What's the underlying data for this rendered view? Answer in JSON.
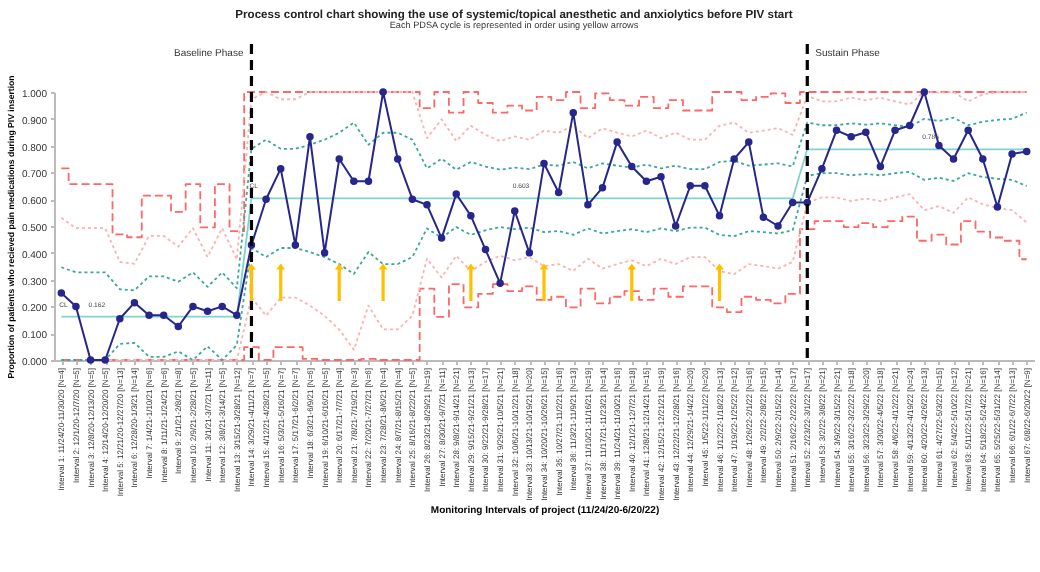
{
  "chart_data": {
    "type": "line",
    "title": "Process control chart showing the use of systemic/topical anesthetic and anxiolytics before PIV start",
    "subtitle": "Each PDSA cycle is represented in order using yellow arrows",
    "xlabel": "Monitoring Intervals of project (11/24/20-6/20/22)",
    "ylabel": "Proportion of patients who recieved pain medications during PIV insertion",
    "categories": [
      "Interval 1: 11/24/20-11/30/20 [N=4]",
      "Interval 2: 12/1/20-12/7/20 [N=5]",
      "Interval 3: 12/8/20-12/13/20 [N=5]",
      "Interval 4: 12/14/20-12/20/20 [N=5]",
      "Interval 5: 12/21/20-12/27/20 [N=13]",
      "Interval 6: 12/28/20-1/3/21 [N=14]",
      "Interval 7: 1/4/21-1/10/21 [N=6]",
      "Interval 8: 1/11/21-1/24/21 [N=6]",
      "Interval 9: 2/1/21-2/8/21 [N=8]",
      "Interval 10: 2/9/21-2/28/21 [N=5]",
      "Interval 11: 3/1/21-3/7/21 [N=11]",
      "Interval 12: 3/8/21-3/14/21 [N=5]",
      "Interval 13: 3/15/21-3/28/21 [N=12]",
      "Interval 14: 3/29/21-4/11/21 [N=7]",
      "Interval 15: 4/12/21-4/28/21 [N=5]",
      "Interval 16: 5/3/21-5/16/21 [N=7]",
      "Interval 17: 5/17/21-6/2/21 [N=7]",
      "Interval 18: 6/3/21-6/9/21 [N=6]",
      "Interval 19: 6/10/21-6/16/21 [N=5]",
      "Interval 20: 6/17/21-7/7/21 [N=4]",
      "Interval 21: 7/8/21-7/19/21 [N=3]",
      "Interval 22: 7/20/21-7/27/21 [N=6]",
      "Interval 23: 7/28/21-8/6/21 [N=4]",
      "Interval 24: 8/7/21-8/15/21 [N=4]",
      "Interval 25: 8/16/21-8/22/21 [N=5]",
      "Interval 26: 8/23/21-8/29/21 [N=19]",
      "Interval 27: 8/30/21-9/7/21 [N=11]",
      "Interval 28: 9/8/21-9/14/21 [N=21]",
      "Interval 29: 9/15/21-9/21/21 [N=13]",
      "Interval 30: 9/22/21-9/28/21 [N=17]",
      "Interval 31: 9/29/21-10/5/21 [N=21]",
      "Interval 32: 10/6/21-10/12/21 [N=18]",
      "Interval 33: 10/13/21-10/19/21 [N=20]",
      "Interval 34: 10/20/21-10/26/21 [N=15]",
      "Interval 35: 10/27/21-11/2/21 [N=16]",
      "Interval 36: 11/3/21-11/9/21 [N=13]",
      "Interval 37: 11/10/21-11/16/21 [N=19]",
      "Interval 38: 11/17/21-11/23/21 [N=14]",
      "Interval 39: 11/24/21-11/30/21 [N=16]",
      "Interval 40: 12/1/21-12/7/21 [N=18]",
      "Interval 41: 12/8/21-12/14/21 [N=15]",
      "Interval 42: 12/15/21-12/21/21 [N=19]",
      "Interval 43: 12/22/21-12/28/21 [N=16]",
      "Interval 44: 12/29/21-1/4/22 [N=20]",
      "Interval 45: 1/5/22-1/11/22 [N=20]",
      "Interval 46: 1/12/22-1/18/22 [N=13]",
      "Interval 47: 1/19/22-1/25/22 [N=12]",
      "Interval 48: 1/26/22-2/1/22 [N=16]",
      "Interval 49: 2/2/22-2/8/22 [N=15]",
      "Interval 50: 2/9/22-2/15/22 [N=14]",
      "Interval 51: 2/16/22-2/22/22 [N=17]",
      "Interval 52: 2/23/22-3/1/22 [N=17]",
      "Interval 53: 3/2/22-3/8/22 [N=21]",
      "Interval 54: 3/9/22-3/15/22 [N=21]",
      "Interval 55: 3/16/22-3/22/22 [N=18]",
      "Interval 56: 3/23/22-3/29/22 [N=20]",
      "Interval 57: 3/30/22-4/5/22 [N=18]",
      "Interval 58: 4/6/22-4/12/22 [N=21]",
      "Interval 59: 4/13/22-4/19/22 [N=24]",
      "Interval 60: 4/20/22-4/26/22 [N=13]",
      "Interval 61: 4/27/22-5/3/22 [N=15]",
      "Interval 62: 5/4/22-5/10/22 [N=12]",
      "Interval 63: 5/11/22-5/17/22 [N=21]",
      "Interval 64: 5/18/22-5/24/22 [N=16]",
      "Interval 65: 5/25/22-5/31/22 [N=14]",
      "Interval 66: 6/1/22-6/7/22 [N=13]",
      "Interval 67: 6/8/22-6/20/22 [N=9]"
    ],
    "series": [
      {
        "type": "step",
        "color": "#ff6666",
        "line_style": "dashed",
        "marker": "none",
        "values": [
          0.715,
          0.656,
          0.656,
          0.656,
          0.469,
          0.458,
          0.613,
          0.613,
          0.553,
          0.656,
          0.495,
          0.656,
          0.481,
          1,
          1,
          1,
          1,
          1,
          1,
          1,
          1,
          1,
          1,
          1,
          1,
          0.94,
          1,
          0.923,
          1,
          0.959,
          0.923,
          0.949,
          0.931,
          0.982,
          0.97,
          1,
          0.94,
          0.995,
          0.97,
          0.949,
          0.982,
          0.94,
          0.97,
          0.931,
          0.931,
          1,
          1,
          0.97,
          0.982,
          0.995,
          0.959,
          1,
          1,
          1,
          1,
          1,
          1,
          1,
          1,
          1,
          1,
          1,
          1,
          1,
          1,
          1,
          1
        ]
      },
      {
        "type": "step",
        "color": "#ff6666",
        "line_style": "dashed",
        "marker": "none",
        "values": [
          0,
          0,
          0,
          0,
          0,
          0,
          0,
          0,
          0,
          0,
          0,
          0,
          0,
          0.048,
          0,
          0.048,
          0.048,
          0.004,
          0,
          0,
          0,
          0.004,
          0,
          0,
          0,
          0.266,
          0.161,
          0.283,
          0.196,
          0.247,
          0.283,
          0.257,
          0.275,
          0.224,
          0.236,
          0.196,
          0.266,
          0.211,
          0.236,
          0.257,
          0.224,
          0.266,
          0.236,
          0.275,
          0.275,
          0.196,
          0.179,
          0.236,
          0.224,
          0.211,
          0.247,
          0.488,
          0.518,
          0.518,
          0.496,
          0.511,
          0.496,
          0.518,
          0.535,
          0.445,
          0.468,
          0.431,
          0.518,
          0.479,
          0.457,
          0.445,
          0.376
        ]
      },
      {
        "type": "line",
        "color": "#ffb0b0",
        "line_style": "dotted",
        "marker": "none",
        "values": [
          0.531,
          0.492,
          0.492,
          0.492,
          0.366,
          0.359,
          0.463,
          0.463,
          0.423,
          0.492,
          0.384,
          0.492,
          0.375,
          0.973,
          1,
          0.973,
          0.973,
          1,
          1,
          1,
          1,
          1,
          1,
          1,
          1,
          0.828,
          0.898,
          0.817,
          0.874,
          0.84,
          0.817,
          0.834,
          0.822,
          0.856,
          0.848,
          0.874,
          0.828,
          0.865,
          0.848,
          0.834,
          0.856,
          0.828,
          0.848,
          0.822,
          0.822,
          0.874,
          0.886,
          0.848,
          0.856,
          0.865,
          0.84,
          0.985,
          0.965,
          0.965,
          0.979,
          0.969,
          0.979,
          0.965,
          0.953,
          1,
          0.998,
          1,
          0.965,
          0.991,
          1,
          1,
          1
        ]
      },
      {
        "type": "line",
        "color": "#ffb0b0",
        "line_style": "dotted",
        "marker": "none",
        "values": [
          0,
          0,
          0,
          0,
          0,
          0,
          0,
          0,
          0,
          0,
          0,
          0,
          0,
          0.233,
          0.165,
          0.233,
          0.233,
          0.203,
          0.165,
          0.114,
          0.038,
          0.203,
          0.114,
          0.114,
          0.165,
          0.378,
          0.308,
          0.389,
          0.332,
          0.366,
          0.389,
          0.372,
          0.384,
          0.35,
          0.358,
          0.332,
          0.378,
          0.341,
          0.358,
          0.372,
          0.35,
          0.378,
          0.358,
          0.384,
          0.384,
          0.332,
          0.32,
          0.358,
          0.35,
          0.341,
          0.366,
          0.587,
          0.607,
          0.607,
          0.593,
          0.603,
          0.593,
          0.607,
          0.619,
          0.559,
          0.574,
          0.549,
          0.607,
          0.581,
          0.567,
          0.559,
          0.513
        ]
      },
      {
        "type": "line",
        "color": "#3aa89a",
        "line_style": "dotted",
        "marker": "none",
        "values": [
          0.346,
          0.327,
          0.327,
          0.327,
          0.264,
          0.26,
          0.312,
          0.312,
          0.292,
          0.327,
          0.273,
          0.327,
          0.268,
          0.788,
          0.822,
          0.788,
          0.788,
          0.803,
          0.822,
          0.848,
          0.886,
          0.803,
          0.848,
          0.848,
          0.822,
          0.715,
          0.751,
          0.71,
          0.739,
          0.722,
          0.71,
          0.718,
          0.712,
          0.729,
          0.725,
          0.739,
          0.715,
          0.734,
          0.725,
          0.718,
          0.729,
          0.715,
          0.725,
          0.712,
          0.712,
          0.739,
          0.744,
          0.725,
          0.729,
          0.734,
          0.722,
          0.886,
          0.876,
          0.876,
          0.883,
          0.878,
          0.883,
          0.876,
          0.87,
          0.9,
          0.892,
          0.904,
          0.876,
          0.889,
          0.896,
          0.9,
          0.923
        ]
      },
      {
        "type": "line",
        "color": "#3aa89a",
        "line_style": "dotted",
        "marker": "none",
        "values": [
          0,
          0,
          0,
          0,
          0.06,
          0.064,
          0.012,
          0.012,
          0.032,
          0,
          0.051,
          0,
          0.056,
          0.418,
          0.384,
          0.418,
          0.418,
          0.403,
          0.384,
          0.358,
          0.321,
          0.403,
          0.358,
          0.358,
          0.384,
          0.491,
          0.456,
          0.496,
          0.467,
          0.484,
          0.496,
          0.488,
          0.494,
          0.477,
          0.481,
          0.467,
          0.491,
          0.472,
          0.481,
          0.488,
          0.477,
          0.491,
          0.481,
          0.494,
          0.494,
          0.467,
          0.462,
          0.481,
          0.477,
          0.472,
          0.484,
          0.687,
          0.697,
          0.697,
          0.689,
          0.694,
          0.689,
          0.697,
          0.702,
          0.672,
          0.68,
          0.668,
          0.697,
          0.683,
          0.676,
          0.672,
          0.649
        ]
      },
      {
        "color": "#7fd3d3",
        "line_style": "solid",
        "marker": "none",
        "values": [
          0.162,
          0.162,
          0.162,
          0.162,
          0.162,
          0.162,
          0.162,
          0.162,
          0.162,
          0.162,
          0.162,
          0.162,
          0.162,
          0.603,
          0.603,
          0.603,
          0.603,
          0.603,
          0.603,
          0.603,
          0.603,
          0.603,
          0.603,
          0.603,
          0.603,
          0.603,
          0.603,
          0.603,
          0.603,
          0.603,
          0.603,
          0.603,
          0.603,
          0.603,
          0.603,
          0.603,
          0.603,
          0.603,
          0.603,
          0.603,
          0.603,
          0.603,
          0.603,
          0.603,
          0.603,
          0.603,
          0.603,
          0.603,
          0.603,
          0.603,
          0.603,
          0.786,
          0.786,
          0.786,
          0.786,
          0.786,
          0.786,
          0.786,
          0.786,
          0.786,
          0.786,
          0.786,
          0.786,
          0.786,
          0.786,
          0.786,
          0.786
        ]
      },
      {
        "color": "#26268c",
        "line_style": "solid",
        "marker": "circle",
        "values": [
          0.25,
          0.2,
          0,
          0,
          0.154,
          0.214,
          0.167,
          0.167,
          0.125,
          0.2,
          0.182,
          0.2,
          0.167,
          0.429,
          0.6,
          0.714,
          0.429,
          0.833,
          0.4,
          0.75,
          0.667,
          0.667,
          1,
          0.75,
          0.6,
          0.579,
          0.455,
          0.619,
          0.538,
          0.412,
          0.286,
          0.556,
          0.4,
          0.733,
          0.625,
          0.923,
          0.579,
          0.643,
          0.813,
          0.722,
          0.667,
          0.684,
          0.5,
          0.65,
          0.65,
          0.538,
          0.75,
          0.813,
          0.533,
          0.5,
          0.588,
          0.588,
          0.714,
          0.857,
          0.833,
          0.85,
          0.722,
          0.857,
          0.875,
          1,
          0.8,
          0.75,
          0.857,
          0.75,
          0.571,
          0.769,
          0.778
        ]
      }
    ],
    "ylim": [
      0,
      1
    ],
    "yticks": [
      {
        "value": 0,
        "label": "0.000"
      },
      {
        "value": 0.1,
        "label": "0.100"
      },
      {
        "value": 0.2,
        "label": "0.200"
      },
      {
        "value": 0.3,
        "label": "0.300"
      },
      {
        "value": 0.4,
        "label": "0.400"
      },
      {
        "value": 0.5,
        "label": "0.500"
      },
      {
        "value": 0.6,
        "label": "0.600"
      },
      {
        "value": 0.7,
        "label": "0.700"
      },
      {
        "value": 0.8,
        "label": "0.800"
      },
      {
        "value": 0.9,
        "label": "0.900"
      },
      {
        "value": 1,
        "label": "1.000"
      }
    ],
    "ref_lines": [
      {
        "axis": "x",
        "value": "Interval 14: 3/29/21-4/11/21 [N=7]",
        "label": "Baseline Phase",
        "color": "#000000",
        "line_style": "dashed"
      },
      {
        "axis": "x",
        "value": "Interval 52: 2/23/22-3/1/22 [N=17]",
        "label": "Sustain Phase",
        "color": "#000000",
        "line_style": "dashed"
      }
    ],
    "annotations": [
      {
        "text": "CL",
        "x": "Interval 1: 11/24/20-11/30/20 [N=4]",
        "y": 0.162
      },
      {
        "text": "0.162",
        "x": "Interval 3: 12/8/20-12/13/20 [N=5]",
        "y": 0.162
      },
      {
        "text": "CL",
        "x": "Interval 14: 3/29/21-4/11/21 [N=7]",
        "y": 0.603
      },
      {
        "text": "0.603",
        "x": "Interval 32: 10/6/21-10/12/21 [N=18]",
        "y": 0.603
      },
      {
        "text": "0.786",
        "x": "Interval 60: 4/20/22-4/26/22 [N=13]",
        "y": 0.786
      }
    ],
    "grid": false,
    "legend": false
  }
}
